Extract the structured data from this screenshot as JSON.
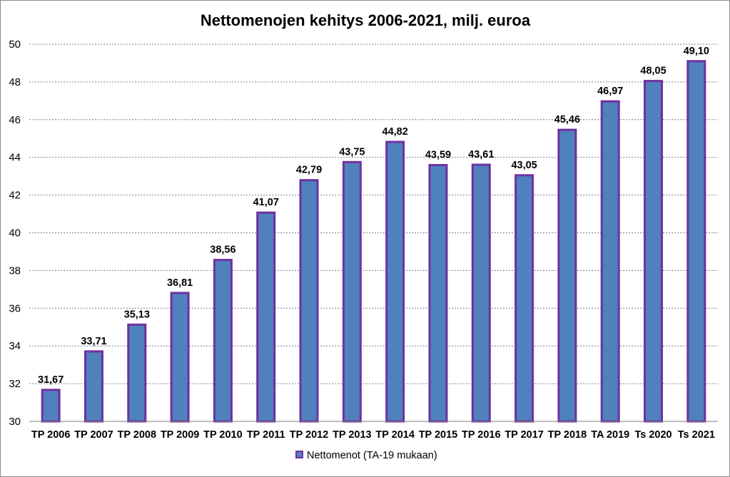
{
  "colors": {
    "bar_fill": "#4f81bd",
    "bar_stroke": "#7030a0",
    "grid": "#7f7f7f",
    "axis": "#7f7f7f"
  },
  "chart_data": {
    "type": "bar",
    "title": "Nettomenojen kehitys 2006-2021, milj. euroa",
    "xlabel": "",
    "ylabel": "",
    "ylim": [
      30,
      50
    ],
    "yticks": [
      30,
      32,
      34,
      36,
      38,
      40,
      42,
      44,
      46,
      48,
      50
    ],
    "grid": true,
    "legend_position": "bottom",
    "categories": [
      "TP 2006",
      "TP 2007",
      "TP 2008",
      "TP 2009",
      "TP 2010",
      "TP 2011",
      "TP 2012",
      "TP 2013",
      "TP 2014",
      "TP 2015",
      "TP 2016",
      "TP 2017",
      "TP 2018",
      "TA 2019",
      "Ts 2020",
      "Ts 2021"
    ],
    "series": [
      {
        "name": "Nettomenot (TA-19 mukaan)",
        "values": [
          31.67,
          33.71,
          35.13,
          36.81,
          38.56,
          41.07,
          42.79,
          43.75,
          44.82,
          43.59,
          43.61,
          43.05,
          45.46,
          46.97,
          48.05,
          49.1
        ],
        "labels": [
          "31,67",
          "33,71",
          "35,13",
          "36,81",
          "38,56",
          "41,07",
          "42,79",
          "43,75",
          "44,82",
          "43,59",
          "43,61",
          "43,05",
          "45,46",
          "46,97",
          "48,05",
          "49,10"
        ]
      }
    ]
  }
}
